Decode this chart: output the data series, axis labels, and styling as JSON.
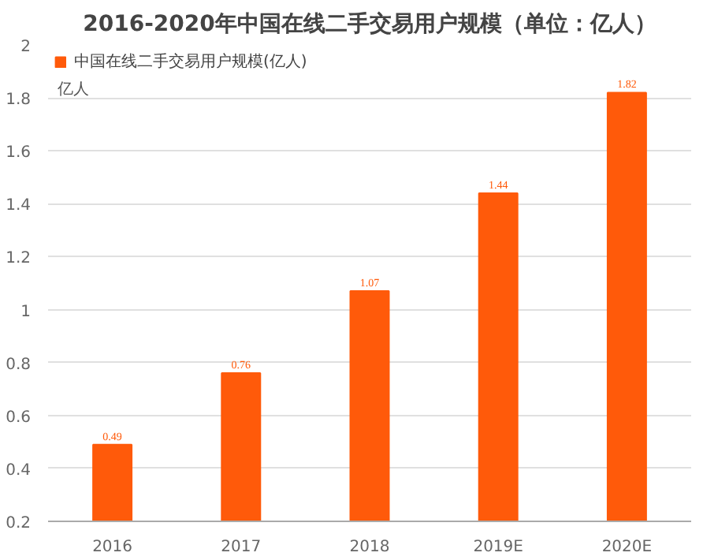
{
  "chart_data": {
    "type": "bar",
    "title": "2016-2020年中国在线二手交易用户规模（单位：亿人）",
    "ylabel": "亿人",
    "categories": [
      "2016",
      "2017",
      "2018",
      "2019E",
      "2020E"
    ],
    "series": [
      {
        "name": "中国在线二手交易用户规模(亿人)",
        "color": "#ff5a0a",
        "values": [
          0.49,
          0.76,
          1.07,
          1.44,
          1.82
        ]
      }
    ],
    "ylim": [
      0.2,
      2
    ],
    "yticks": [
      0.2,
      0.4,
      0.6,
      0.8,
      1,
      1.2,
      1.4,
      1.6,
      1.8,
      2
    ],
    "grid": "y",
    "legend": "top left",
    "data_labels": true
  }
}
